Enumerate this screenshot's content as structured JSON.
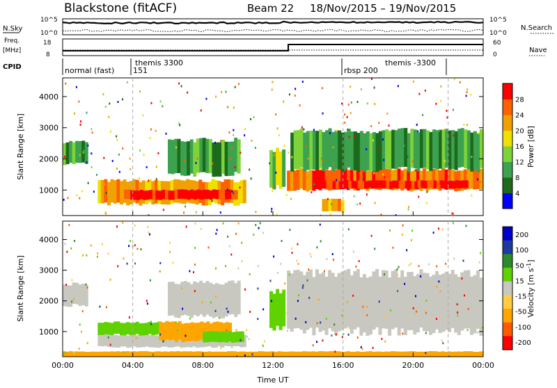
{
  "header": {
    "station": "Blackstone (fitACF)",
    "beam": "Beam 22",
    "dates": "18/Nov/2015 – 19/Nov/2015"
  },
  "noise_panel": {
    "left_label": "N.Sky",
    "right_label": "N.Search",
    "left_ticks": [
      "10^5",
      "10^0"
    ],
    "right_ticks": [
      "10^5",
      "10^0"
    ]
  },
  "freq_panel": {
    "left_label_1": "Freq.",
    "left_label_2": "[MHz]",
    "right_label": "Nave",
    "left_ticks": [
      "18",
      "8"
    ],
    "right_ticks": [
      "60",
      "0"
    ]
  },
  "cpid": {
    "label": "CPID",
    "segments": [
      "normal (fast)",
      "151",
      "themis 3300",
      "rbsp 200",
      "themis -3300"
    ]
  },
  "colors": {
    "power": [
      "#0000ff",
      "#1b6b1b",
      "#3ca24f",
      "#7fd33a",
      "#f0e000",
      "#f0a000",
      "#ff6000",
      "#ff0000"
    ],
    "velocity": [
      "#ff0000",
      "#ff5a00",
      "#ffa500",
      "#ffcc44",
      "#c8c8c0",
      "#5fd200",
      "#2a8b2a",
      "#1c3aa0",
      "#0000c8"
    ]
  },
  "chart_data": [
    {
      "type": "heatmap",
      "title": "Power",
      "xlabel": "Time UT",
      "ylabel": "Slant Range [km]",
      "xlim": [
        "00:00",
        "00:00"
      ],
      "ylim": [
        180,
        4600
      ],
      "x_ticks": [
        "00:00",
        "04:00",
        "08:00",
        "12:00",
        "16:00",
        "20:00",
        "00:00"
      ],
      "y_ticks": [
        1000,
        2000,
        3000,
        4000
      ],
      "colorbar_label": "Power [dB]",
      "colorbar_ticks": [
        "4",
        "8",
        "12",
        "16",
        "20",
        "24",
        "28"
      ],
      "regions": [
        {
          "t0": 0.0,
          "t1": 1.4,
          "r0": 1850,
          "r1": 2550,
          "level": 2
        },
        {
          "t0": 2.0,
          "t1": 10.3,
          "r0": 550,
          "r1": 1300,
          "level": 5
        },
        {
          "t0": 3.5,
          "t1": 9.8,
          "r0": 700,
          "r1": 1000,
          "level": 7
        },
        {
          "t0": 6.0,
          "t1": 10.0,
          "r0": 1500,
          "r1": 2600,
          "level": 2
        },
        {
          "t0": 11.8,
          "t1": 12.6,
          "r0": 1100,
          "r1": 2300,
          "level": 3
        },
        {
          "t0": 12.8,
          "t1": 24.0,
          "r0": 1000,
          "r1": 1650,
          "level": 6
        },
        {
          "t0": 14.5,
          "t1": 23.0,
          "r0": 1050,
          "r1": 1300,
          "level": 7
        },
        {
          "t0": 14.8,
          "t1": 15.9,
          "r0": 300,
          "r1": 700,
          "level": 5
        },
        {
          "t0": 13.0,
          "t1": 24.0,
          "r0": 1650,
          "r1": 2900,
          "level": 2
        }
      ]
    },
    {
      "type": "heatmap",
      "title": "Velocity",
      "xlabel": "Time UT",
      "ylabel": "Slant Range [km]",
      "xlim": [
        "00:00",
        "00:00"
      ],
      "ylim": [
        180,
        4600
      ],
      "x_ticks": [
        "00:00",
        "04:00",
        "08:00",
        "12:00",
        "16:00",
        "20:00",
        "00:00"
      ],
      "y_ticks": [
        1000,
        2000,
        3000,
        4000
      ],
      "colorbar_label": "Velocity [m s^-1]",
      "colorbar_ticks": [
        "200",
        "100",
        "50",
        "15",
        "-15",
        "-50",
        "-100",
        "-200"
      ],
      "regions": [
        {
          "t0": 0.0,
          "t1": 1.4,
          "r0": 1850,
          "r1": 2550,
          "value": 0
        },
        {
          "t0": 2.0,
          "t1": 10.3,
          "r0": 500,
          "r1": 900,
          "value": 0
        },
        {
          "t0": 2.0,
          "t1": 6.5,
          "r0": 900,
          "r1": 1300,
          "value": 30
        },
        {
          "t0": 5.5,
          "t1": 9.5,
          "r0": 700,
          "r1": 1300,
          "value": -60
        },
        {
          "t0": 8.0,
          "t1": 10.3,
          "r0": 650,
          "r1": 1000,
          "value": 30
        },
        {
          "t0": 6.0,
          "t1": 10.0,
          "r0": 1500,
          "r1": 2600,
          "value": 0
        },
        {
          "t0": 11.8,
          "t1": 12.6,
          "r0": 1100,
          "r1": 2300,
          "value": 30
        },
        {
          "t0": 12.8,
          "t1": 24.0,
          "r0": 1000,
          "r1": 2900,
          "value": 0
        },
        {
          "t0": 0.0,
          "t1": 24.0,
          "r0": 180,
          "r1": 350,
          "value": -60
        }
      ]
    }
  ]
}
